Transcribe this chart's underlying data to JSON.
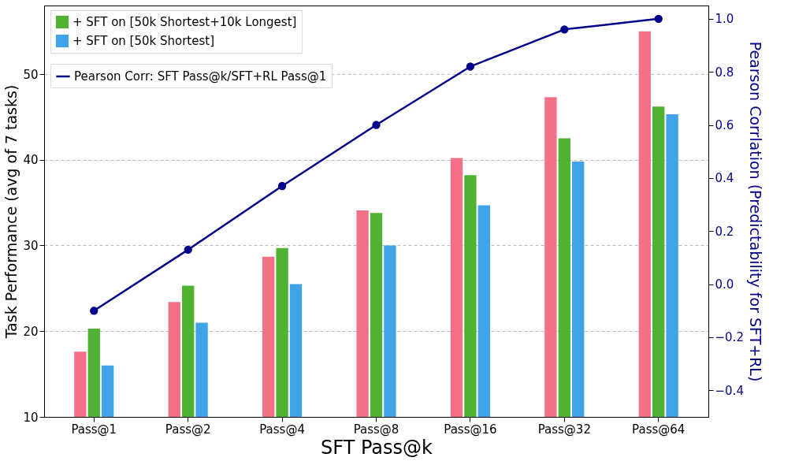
{
  "chart_data": {
    "type": "bar",
    "xlabel": "SFT Pass@k",
    "ylabel": "Task Performance (avg of 7 tasks)",
    "y2label": "Pearson Corrlation (Predictability for SFT+RL)",
    "categories": [
      "Pass@1",
      "Pass@2",
      "Pass@4",
      "Pass@8",
      "Pass@16",
      "Pass@32",
      "Pass@64"
    ],
    "series": [
      {
        "color": "#f47088",
        "values": [
          17.6,
          23.4,
          28.7,
          34.1,
          40.2,
          47.3,
          55.0
        ]
      },
      {
        "name": "+ SFT on [50k Shortest+10k Longest]",
        "color": "#4fb233",
        "values": [
          20.3,
          25.3,
          29.7,
          33.8,
          38.2,
          42.5,
          46.2
        ]
      },
      {
        "name": "+ SFT on [50k Shortest]",
        "color": "#3ea3e8",
        "values": [
          16.0,
          21.0,
          25.5,
          30.0,
          34.7,
          39.8,
          45.3
        ]
      },
      {
        "name": "Pearson Corr: SFT Pass@k/SFT+RL Pass@1",
        "type": "line",
        "axis": "y2",
        "color": "#00008b",
        "marker": "circle",
        "values": [
          -0.1,
          0.13,
          0.37,
          0.6,
          0.82,
          0.96,
          1.0
        ]
      }
    ],
    "ylim": [
      10,
      58
    ],
    "yticks": [
      10,
      20,
      30,
      40,
      50
    ],
    "y2lim": [
      -0.5,
      1.05
    ],
    "y2ticks": [
      {
        "value": -0.4,
        "label": "−0.4"
      },
      {
        "value": -0.2,
        "label": "−0.2"
      },
      {
        "value": 0,
        "label": "0.0"
      },
      {
        "value": 0.2,
        "label": "0.2"
      },
      {
        "value": 0.4,
        "label": "0.4"
      },
      {
        "value": 0.6,
        "label": "0.6"
      },
      {
        "value": 0.8,
        "label": "0.8"
      },
      {
        "value": 1.0,
        "label": "1.0"
      }
    ],
    "grid": "y",
    "legend": "top left"
  }
}
